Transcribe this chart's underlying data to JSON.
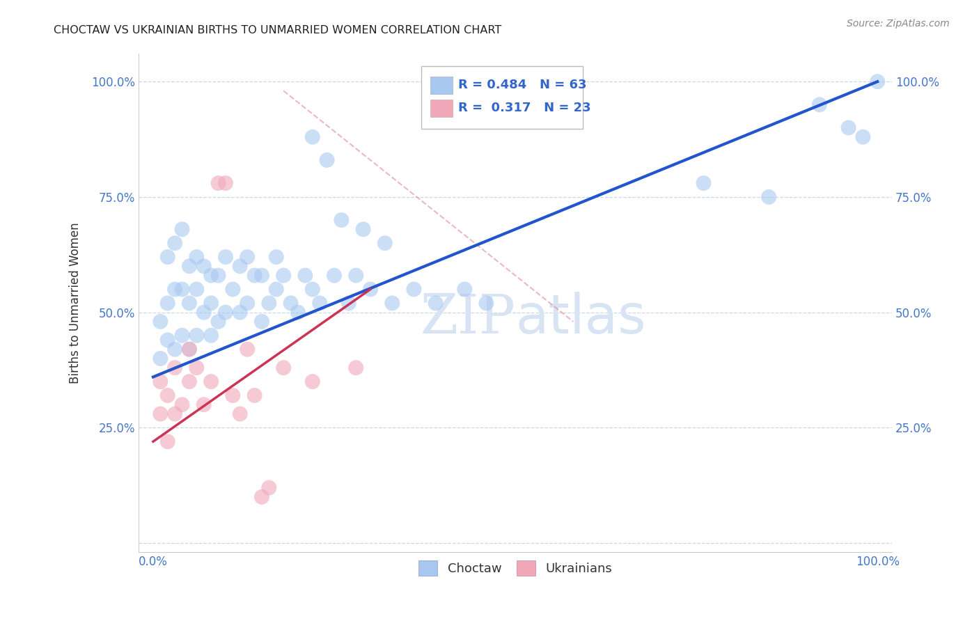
{
  "title": "CHOCTAW VS UKRAINIAN BIRTHS TO UNMARRIED WOMEN CORRELATION CHART",
  "source": "Source: ZipAtlas.com",
  "ylabel": "Births to Unmarried Women",
  "xlim": [
    0.0,
    1.0
  ],
  "ylim": [
    0.0,
    1.0
  ],
  "xticks": [
    0.0,
    0.25,
    0.5,
    0.75,
    1.0
  ],
  "yticks": [
    0.0,
    0.25,
    0.5,
    0.75,
    1.0
  ],
  "xticklabels": [
    "0.0%",
    "",
    "",
    "",
    "100.0%"
  ],
  "yticklabels": [
    "",
    "25.0%",
    "50.0%",
    "75.0%",
    "100.0%"
  ],
  "blue_R": 0.484,
  "blue_N": 63,
  "pink_R": 0.317,
  "pink_N": 23,
  "blue_color": "#a8c8f0",
  "pink_color": "#f0a8b8",
  "blue_line_color": "#2255cc",
  "pink_line_color": "#cc3355",
  "dashed_color": "#e08898",
  "legend_blue_label": "Choctaw",
  "legend_pink_label": "Ukrainians",
  "blue_scatter_x": [
    0.01,
    0.01,
    0.02,
    0.02,
    0.02,
    0.03,
    0.03,
    0.03,
    0.04,
    0.04,
    0.04,
    0.05,
    0.05,
    0.05,
    0.06,
    0.06,
    0.06,
    0.07,
    0.07,
    0.08,
    0.08,
    0.08,
    0.09,
    0.09,
    0.1,
    0.1,
    0.11,
    0.12,
    0.12,
    0.13,
    0.13,
    0.14,
    0.15,
    0.15,
    0.16,
    0.17,
    0.17,
    0.18,
    0.19,
    0.2,
    0.21,
    0.22,
    0.23,
    0.25,
    0.27,
    0.28,
    0.3,
    0.33,
    0.36,
    0.39,
    0.43,
    0.46,
    0.22,
    0.24,
    0.26,
    0.29,
    0.32,
    0.76,
    0.85,
    0.92,
    0.96,
    0.98,
    1.0
  ],
  "blue_scatter_y": [
    0.4,
    0.48,
    0.44,
    0.52,
    0.62,
    0.42,
    0.55,
    0.65,
    0.45,
    0.55,
    0.68,
    0.42,
    0.52,
    0.6,
    0.45,
    0.55,
    0.62,
    0.5,
    0.6,
    0.45,
    0.52,
    0.58,
    0.48,
    0.58,
    0.5,
    0.62,
    0.55,
    0.5,
    0.6,
    0.52,
    0.62,
    0.58,
    0.48,
    0.58,
    0.52,
    0.55,
    0.62,
    0.58,
    0.52,
    0.5,
    0.58,
    0.55,
    0.52,
    0.58,
    0.52,
    0.58,
    0.55,
    0.52,
    0.55,
    0.52,
    0.55,
    0.52,
    0.88,
    0.83,
    0.7,
    0.68,
    0.65,
    0.78,
    0.75,
    0.95,
    0.9,
    0.88,
    1.0
  ],
  "pink_scatter_x": [
    0.01,
    0.01,
    0.02,
    0.02,
    0.03,
    0.03,
    0.04,
    0.05,
    0.05,
    0.06,
    0.07,
    0.08,
    0.09,
    0.1,
    0.11,
    0.12,
    0.13,
    0.14,
    0.15,
    0.16,
    0.18,
    0.22,
    0.28
  ],
  "pink_scatter_y": [
    0.28,
    0.35,
    0.22,
    0.32,
    0.28,
    0.38,
    0.3,
    0.35,
    0.42,
    0.38,
    0.3,
    0.35,
    0.78,
    0.78,
    0.32,
    0.28,
    0.42,
    0.32,
    0.1,
    0.12,
    0.38,
    0.35,
    0.38
  ],
  "blue_line_x0": 0.0,
  "blue_line_y0": 0.36,
  "blue_line_x1": 1.0,
  "blue_line_y1": 1.0,
  "pink_line_x0": 0.0,
  "pink_line_y0": 0.22,
  "pink_line_x1": 0.3,
  "pink_line_y1": 0.55,
  "dashed_line_x0": 0.18,
  "dashed_line_y0": 0.98,
  "dashed_line_x1": 0.58,
  "dashed_line_y1": 0.48,
  "background_color": "#ffffff",
  "grid_color": "#c8d8ec",
  "watermark_zip": "ZIP",
  "watermark_atlas": "atlas",
  "watermark_color": "#d8e4f4"
}
